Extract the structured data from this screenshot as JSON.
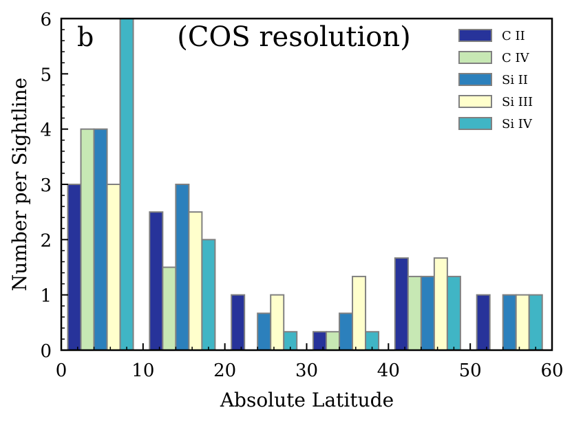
{
  "chart_data": {
    "type": "bar",
    "title": "(COS resolution)",
    "panel_label": "b",
    "xlabel": "Absolute Latitude",
    "ylabel": "Number per Sightline",
    "xlim": [
      0,
      60
    ],
    "ylim": [
      0,
      6
    ],
    "xticks": [
      0,
      10,
      20,
      30,
      40,
      50,
      60
    ],
    "yticks": [
      0,
      1,
      2,
      3,
      4,
      5,
      6
    ],
    "bin_edges": [
      0,
      10,
      20,
      30,
      40,
      50,
      60
    ],
    "legend_position": "top-right",
    "grid": false,
    "series": [
      {
        "name": "C II",
        "color": "#27339a",
        "values": [
          3,
          2.5,
          1,
          0.333,
          1.667,
          1
        ]
      },
      {
        "name": "C IV",
        "color": "#c7e8b4",
        "values": [
          4,
          1.5,
          0,
          0.333,
          1.333,
          0
        ]
      },
      {
        "name": "Si II",
        "color": "#2c80bc",
        "values": [
          4,
          3,
          0.667,
          0.667,
          1.333,
          1
        ]
      },
      {
        "name": "Si III",
        "color": "#ffffcc",
        "values": [
          3,
          2.5,
          1,
          1.333,
          1.667,
          1
        ]
      },
      {
        "name": "Si IV",
        "color": "#40b5c5",
        "values": [
          6,
          2,
          0.333,
          0.333,
          1.333,
          1
        ]
      }
    ],
    "bar_edge_color": "#808080"
  }
}
